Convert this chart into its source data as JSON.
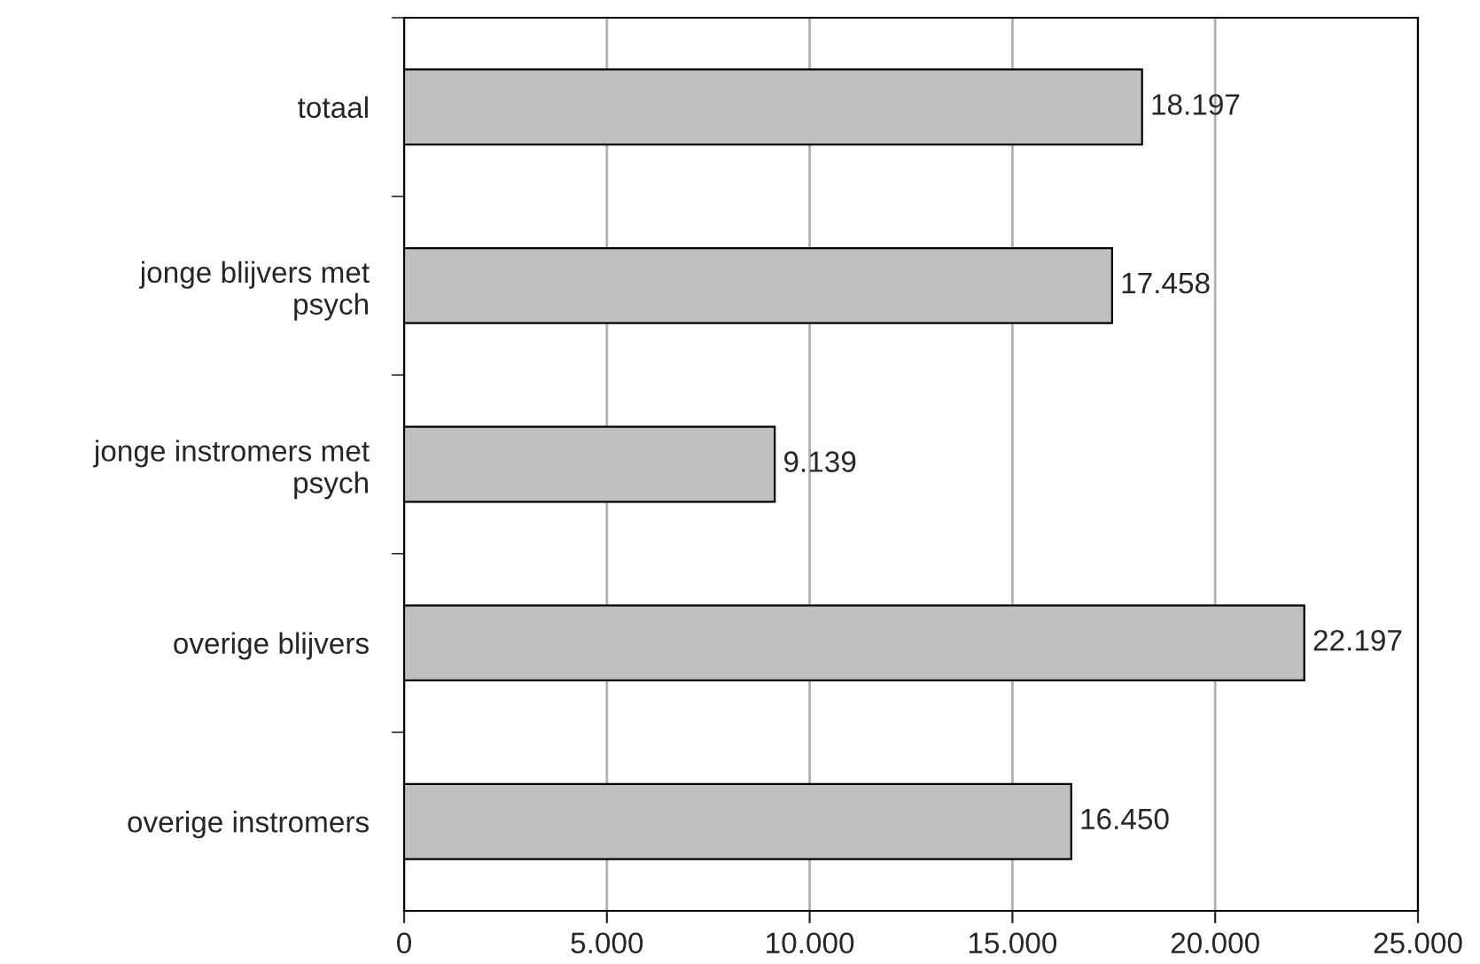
{
  "chart_data": {
    "type": "bar",
    "orientation": "horizontal",
    "categories": [
      "totaal",
      "jonge blijvers met\npsych",
      "jonge instromers met\npsych",
      "overige blijvers",
      "overige instromers"
    ],
    "values": [
      18197,
      17458,
      9139,
      22197,
      16450
    ],
    "value_labels": [
      "18.197",
      "17.458",
      "9.139",
      "22.197",
      "16.450"
    ],
    "color": "#c0c0c0",
    "xlim": [
      0,
      25000
    ],
    "xticks": [
      0,
      {
        "value": 5000,
        "label": "5.000"
      },
      {
        "value": 10000,
        "label": "10.000"
      },
      {
        "value": 15000,
        "label": "15.000"
      },
      {
        "value": 20000,
        "label": "20.000"
      },
      {
        "value": 25000,
        "label": "25.000"
      }
    ],
    "grid": "x"
  }
}
